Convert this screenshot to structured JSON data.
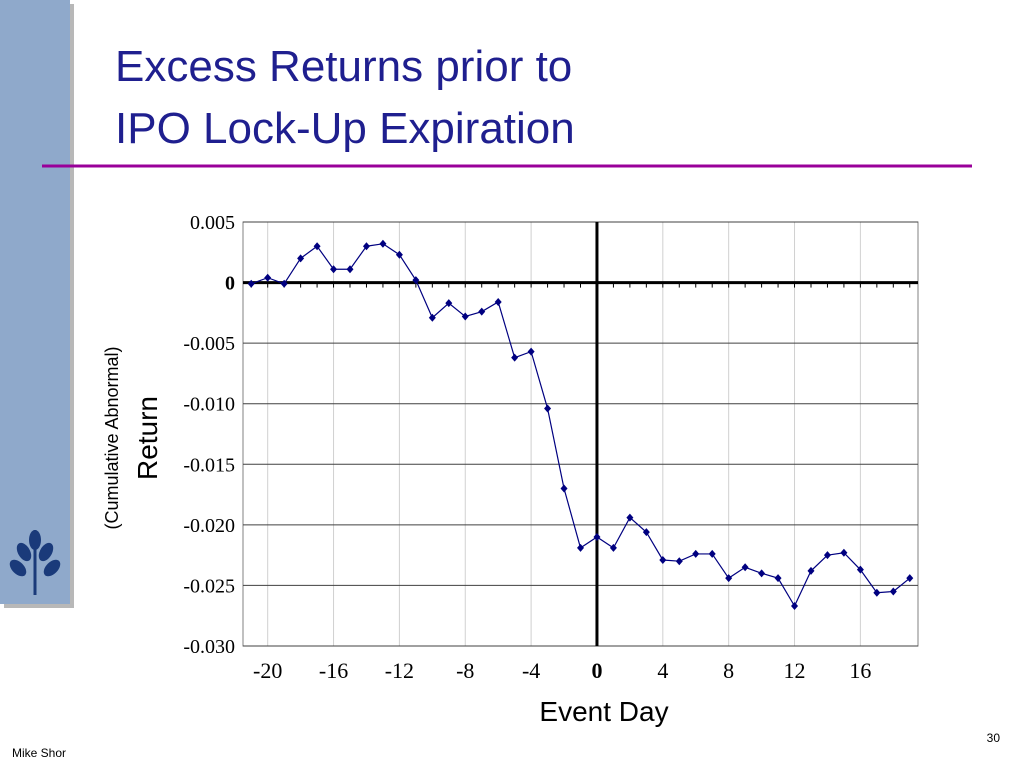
{
  "title_lines": [
    "Excess Returns prior to",
    "IPO Lock-Up Expiration"
  ],
  "footer": {
    "author": "Mike Shor",
    "page": "30"
  },
  "chart_data": {
    "type": "line",
    "y_label": "Return",
    "y_sublabel": "(Cumulative Abnormal)",
    "x_label": "Event Day",
    "x": [
      -21,
      -20,
      -19,
      -18,
      -17,
      -16,
      -15,
      -14,
      -13,
      -12,
      -11,
      -10,
      -9,
      -8,
      -7,
      -6,
      -5,
      -4,
      -3,
      -2,
      -1,
      0,
      1,
      2,
      3,
      4,
      5,
      6,
      7,
      8,
      9,
      10,
      11,
      12,
      13,
      14,
      15,
      16,
      17,
      18,
      19
    ],
    "series": [
      {
        "color": "#000080",
        "values": [
          -0.0001,
          0.0004,
          -0.0001,
          0.002,
          0.003,
          0.0011,
          0.0011,
          0.003,
          0.0032,
          0.0023,
          0.0002,
          -0.0029,
          -0.0017,
          -0.0028,
          -0.0024,
          -0.0016,
          -0.0062,
          -0.0057,
          -0.0104,
          -0.017,
          -0.0219,
          -0.021,
          -0.0219,
          -0.0194,
          -0.0206,
          -0.0229,
          -0.023,
          -0.0224,
          -0.0224,
          -0.0244,
          -0.0235,
          -0.024,
          -0.0244,
          -0.0267,
          -0.0238,
          -0.0225,
          -0.0223,
          -0.0237,
          -0.0256,
          -0.0255,
          -0.0244
        ]
      }
    ],
    "xlim": [
      -21.5,
      19.5
    ],
    "xticks": [
      -20,
      -16,
      -12,
      -8,
      -4,
      0,
      4,
      8,
      12,
      16
    ],
    "ylim": [
      -0.03,
      0.005
    ],
    "yticks": [
      0.005,
      0,
      -0.005,
      {
        "value": -0.01,
        "label": "-0.010"
      },
      -0.015,
      {
        "value": -0.02,
        "label": "-0.020"
      },
      -0.025,
      {
        "value": -0.03,
        "label": "-0.030"
      }
    ],
    "grid": true
  }
}
